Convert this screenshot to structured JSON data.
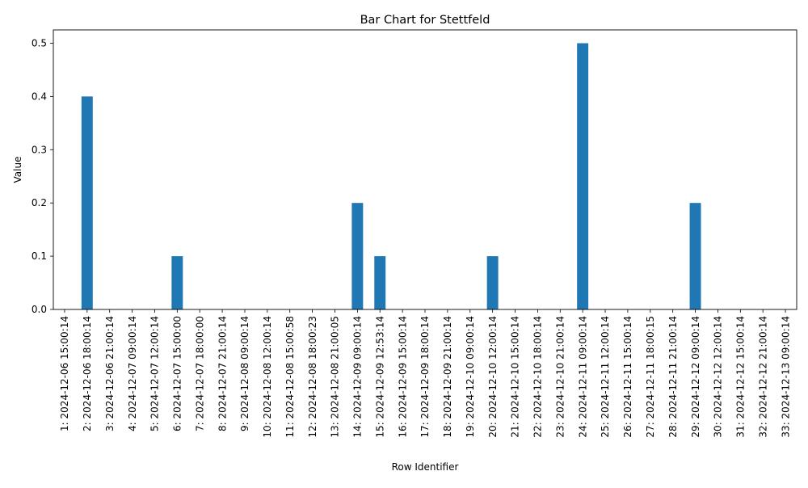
{
  "chart_data": {
    "type": "bar",
    "title": "Bar Chart for Stettfeld",
    "xlabel": "Row Identifier",
    "ylabel": "Value",
    "ylim": [
      0,
      0.525
    ],
    "yticks": [
      "0.0",
      "0.1",
      "0.2",
      "0.3",
      "0.4",
      "0.5"
    ],
    "grid": false,
    "legend": "none",
    "bar_color": "#1f77b4",
    "categories": [
      "1: 2024-12-06 15:00:14",
      "2: 2024-12-06 18:00:14",
      "3: 2024-12-06 21:00:14",
      "4: 2024-12-07 09:00:14",
      "5: 2024-12-07 12:00:14",
      "6: 2024-12-07 15:00:00",
      "7: 2024-12-07 18:00:00",
      "8: 2024-12-07 21:00:14",
      "9: 2024-12-08 09:00:14",
      "10: 2024-12-08 12:00:14",
      "11: 2024-12-08 15:00:58",
      "12: 2024-12-08 18:00:23",
      "13: 2024-12-08 21:00:05",
      "14: 2024-12-09 09:00:14",
      "15: 2024-12-09 12:53:14",
      "16: 2024-12-09 15:00:14",
      "17: 2024-12-09 18:00:14",
      "18: 2024-12-09 21:00:14",
      "19: 2024-12-10 09:00:14",
      "20: 2024-12-10 12:00:14",
      "21: 2024-12-10 15:00:14",
      "22: 2024-12-10 18:00:14",
      "23: 2024-12-10 21:00:14",
      "24: 2024-12-11 09:00:14",
      "25: 2024-12-11 12:00:14",
      "26: 2024-12-11 15:00:14",
      "27: 2024-12-11 18:00:15",
      "28: 2024-12-11 21:00:14",
      "29: 2024-12-12 09:00:14",
      "30: 2024-12-12 12:00:14",
      "31: 2024-12-12 15:00:14",
      "32: 2024-12-12 21:00:14",
      "33: 2024-12-13 09:00:14"
    ],
    "values": [
      0,
      0.4,
      0,
      0,
      0,
      0.1,
      0,
      0,
      0,
      0,
      0,
      0,
      0,
      0.2,
      0.1,
      0,
      0,
      0,
      0,
      0.1,
      0,
      0,
      0,
      0.5,
      0,
      0,
      0,
      0,
      0.2,
      0,
      0,
      0,
      0
    ]
  }
}
